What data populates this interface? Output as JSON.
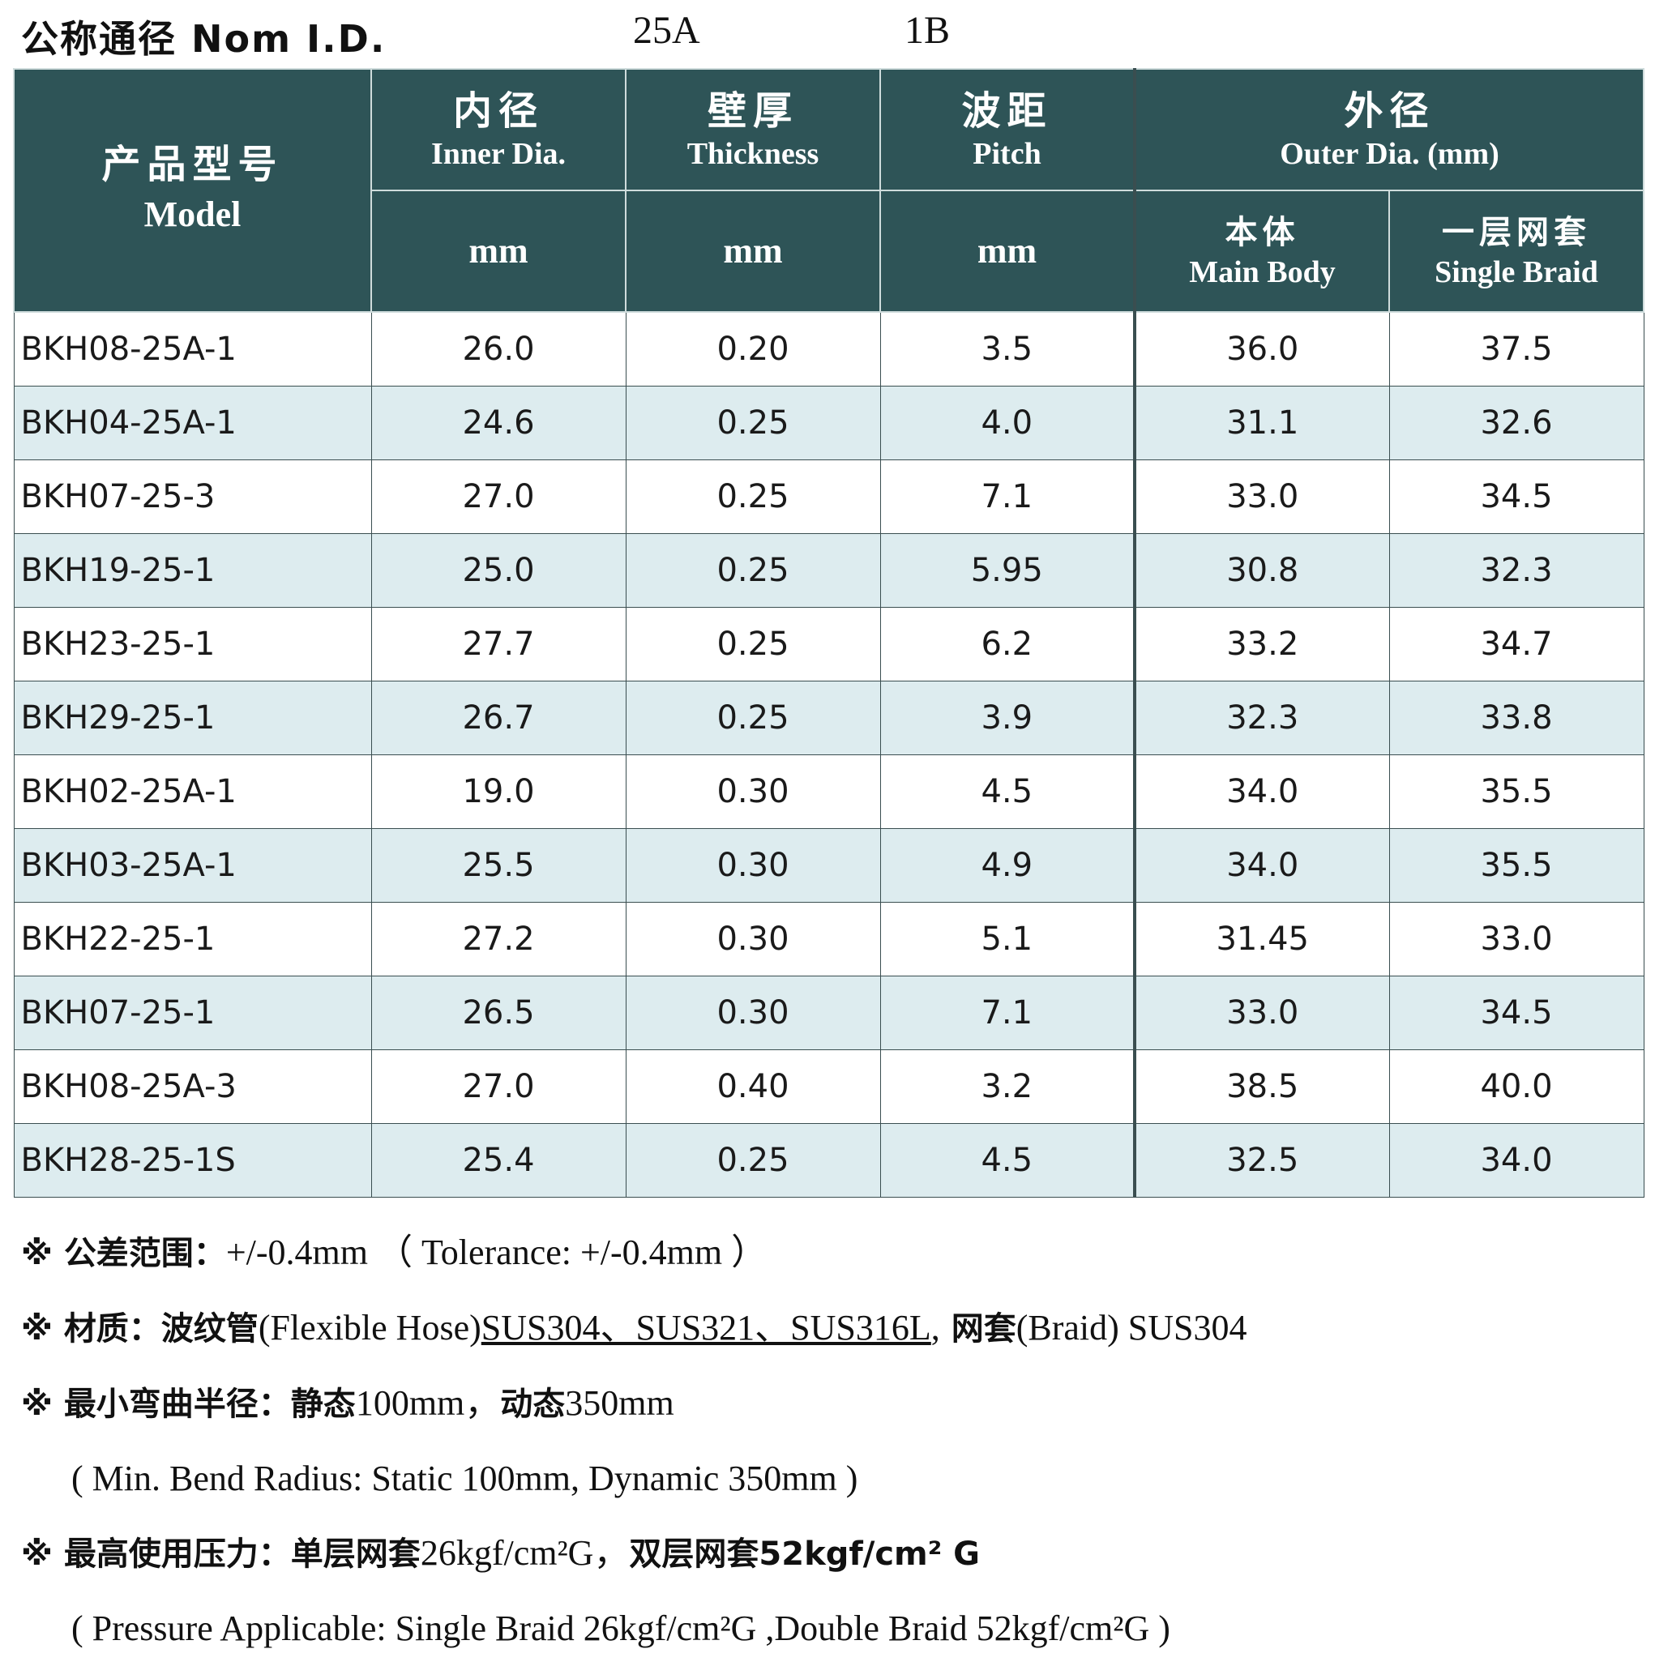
{
  "title": {
    "label": "公称通径 Nom I.D.",
    "size_a": "25A",
    "size_b": "1B"
  },
  "table": {
    "header": {
      "model_zh": "产品型号",
      "model_en": "Model",
      "inner_zh": "内径",
      "inner_en": "Inner Dia.",
      "inner_unit": "mm",
      "thick_zh": "壁厚",
      "thick_en": "Thickness",
      "thick_unit": "mm",
      "pitch_zh": "波距",
      "pitch_en": "Pitch",
      "pitch_unit": "mm",
      "outer_zh": "外径",
      "outer_en": "Outer Dia. (mm)",
      "body_zh": "本体",
      "body_en": "Main Body",
      "braid_zh": "一层网套",
      "braid_en": "Single Braid"
    },
    "rows": [
      {
        "model": "BKH08-25A-1",
        "inner": "26.0",
        "thickness": "0.20",
        "pitch": "3.5",
        "body": "36.0",
        "braid": "37.5"
      },
      {
        "model": "BKH04-25A-1",
        "inner": "24.6",
        "thickness": "0.25",
        "pitch": "4.0",
        "body": "31.1",
        "braid": "32.6"
      },
      {
        "model": "BKH07-25-3",
        "inner": "27.0",
        "thickness": "0.25",
        "pitch": "7.1",
        "body": "33.0",
        "braid": "34.5"
      },
      {
        "model": "BKH19-25-1",
        "inner": "25.0",
        "thickness": "0.25",
        "pitch": "5.95",
        "body": "30.8",
        "braid": "32.3"
      },
      {
        "model": "BKH23-25-1",
        "inner": "27.7",
        "thickness": "0.25",
        "pitch": "6.2",
        "body": "33.2",
        "braid": "34.7"
      },
      {
        "model": "BKH29-25-1",
        "inner": "26.7",
        "thickness": "0.25",
        "pitch": "3.9",
        "body": "32.3",
        "braid": "33.8"
      },
      {
        "model": "BKH02-25A-1",
        "inner": "19.0",
        "thickness": "0.30",
        "pitch": "4.5",
        "body": "34.0",
        "braid": "35.5"
      },
      {
        "model": "BKH03-25A-1",
        "inner": "25.5",
        "thickness": "0.30",
        "pitch": "4.9",
        "body": "34.0",
        "braid": "35.5"
      },
      {
        "model": "BKH22-25-1",
        "inner": "27.2",
        "thickness": "0.30",
        "pitch": "5.1",
        "body": "31.45",
        "braid": "33.0"
      },
      {
        "model": "BKH07-25-1",
        "inner": "26.5",
        "thickness": "0.30",
        "pitch": "7.1",
        "body": "33.0",
        "braid": "34.5"
      },
      {
        "model": "BKH08-25A-3",
        "inner": "27.0",
        "thickness": "0.40",
        "pitch": "3.2",
        "body": "38.5",
        "braid": "40.0"
      },
      {
        "model": "BKH28-25-1S",
        "inner": "25.4",
        "thickness": "0.25",
        "pitch": "4.5",
        "body": "32.5",
        "braid": "34.0"
      }
    ]
  },
  "notes": {
    "tolerance_zh": "※ 公差范围：",
    "tolerance_val": "+/-0.4mm （ Tolerance: +/-0.4mm ）",
    "material_zh1": "※ 材质：波纹管",
    "material_en1": "(Flexible Hose)",
    "material_grades": "SUS304、SUS321、SUS316L",
    "material_comma": ",",
    "material_zh2": " 网套",
    "material_en2": "(Braid) SUS304",
    "bend_zh": "※ 最小弯曲半径：静态",
    "bend_static": "100mm，",
    "bend_zh2": "动态",
    "bend_dynamic": "350mm",
    "bend_en": "( Min. Bend Radius: Static 100mm, Dynamic 350mm )",
    "pressure_zh": "※ 最高使用压力：单层网套",
    "pressure_single": "26kgf/cm²G，",
    "pressure_zh2": "双层网套",
    "pressure_double": "52kgf/cm² G",
    "pressure_en": "( Pressure Applicable: Single Braid 26kgf/cm²G ,Double Braid 52kgf/cm²G )"
  }
}
